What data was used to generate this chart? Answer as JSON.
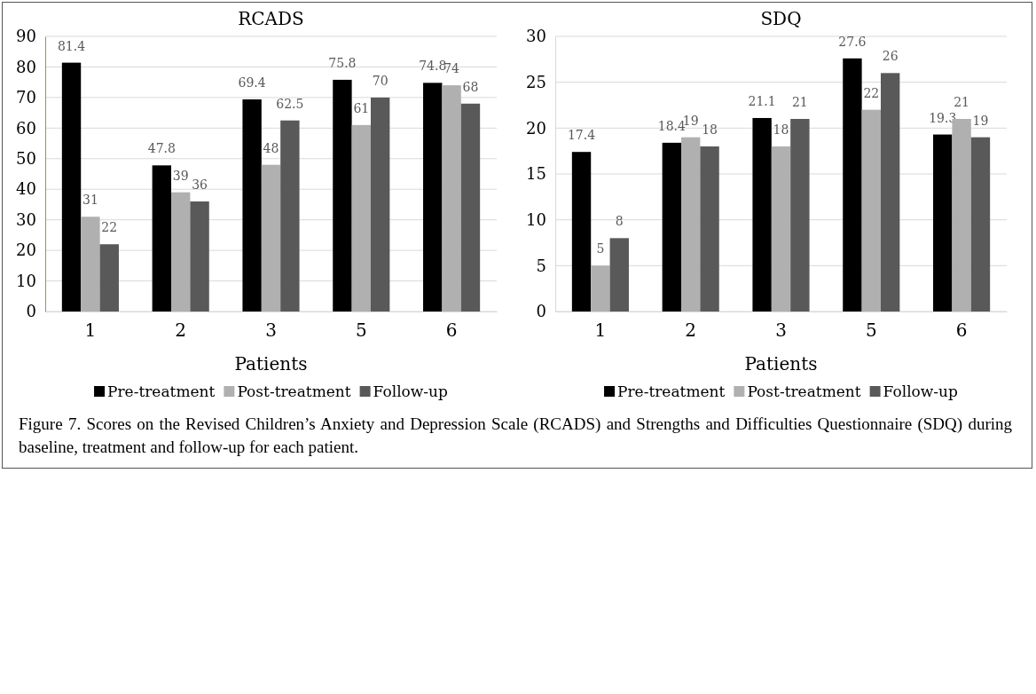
{
  "chart_data": [
    {
      "type": "bar",
      "title": "RCADS",
      "xlabel": "Patients",
      "categories": [
        "1",
        "2",
        "3",
        "5",
        "6"
      ],
      "series": [
        {
          "name": "Pre-treatment",
          "color": "#000000",
          "values": [
            81.4,
            47.8,
            69.4,
            75.8,
            74.8
          ]
        },
        {
          "name": "Post-treatment",
          "color": "#b0b0b0",
          "values": [
            31,
            39,
            48,
            61,
            74
          ]
        },
        {
          "name": "Follow-up",
          "color": "#595959",
          "values": [
            22,
            36,
            62.5,
            70,
            68
          ]
        }
      ],
      "ylim": [
        0,
        90
      ],
      "yticks": [
        0,
        10,
        20,
        30,
        40,
        50,
        60,
        70,
        80,
        90
      ],
      "grid": "y",
      "legend": "bottom",
      "data_labels": true,
      "annotations": [
        "Figure 7. Scores on the Revised Children’s Anxiety and Depression Scale (RCADS) and Strengths and Difficulties Questionnaire (SDQ) during baseline, treatment and follow-up for each patient."
      ]
    },
    {
      "type": "bar",
      "title": "SDQ",
      "xlabel": "Patients",
      "categories": [
        "1",
        "2",
        "3",
        "5",
        "6"
      ],
      "series": [
        {
          "name": "Pre-treatment",
          "color": "#000000",
          "values": [
            17.4,
            18.4,
            21.1,
            27.6,
            19.3
          ]
        },
        {
          "name": "Post-treatment",
          "color": "#b0b0b0",
          "values": [
            5,
            19,
            18,
            22,
            21
          ]
        },
        {
          "name": "Follow-up",
          "color": "#595959",
          "values": [
            8,
            18,
            21,
            26,
            19
          ]
        }
      ],
      "ylim": [
        0,
        30
      ],
      "yticks": [
        0,
        5,
        10,
        15,
        20,
        25,
        30
      ],
      "grid": "y",
      "legend": "bottom",
      "data_labels": true
    }
  ]
}
